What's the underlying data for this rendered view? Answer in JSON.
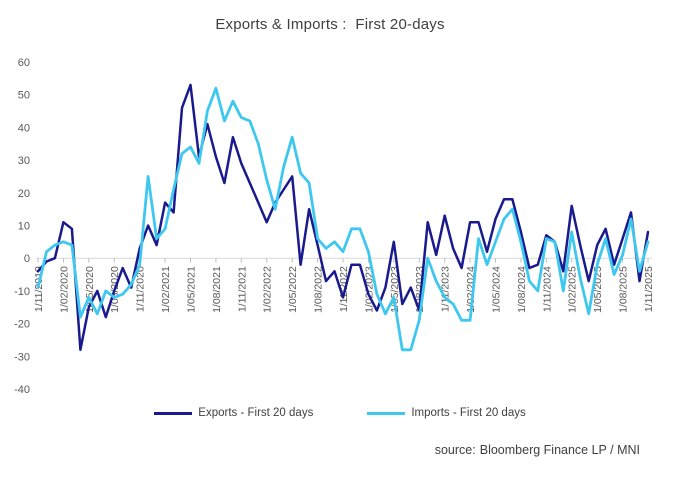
{
  "title": "Exports & Imports :  First 20-days",
  "source": {
    "label": "source:",
    "value": "Bloomberg Finance LP / MNI"
  },
  "colors": {
    "exports": "#1a1a8f",
    "imports": "#3fc8ef",
    "axis_line": "#d9d9d9",
    "tick": "#bfbfbf",
    "label_text": "#595959",
    "title_text": "#404040"
  },
  "legend": [
    {
      "label": "Exports - First 20 days",
      "series": "exports"
    },
    {
      "label": "Imports - First 20 days",
      "series": "imports"
    }
  ],
  "chart_data": {
    "type": "line",
    "title": "Exports & Imports :  First 20-days",
    "xlabel": "",
    "ylabel": "",
    "ylim": [
      -40,
      60
    ],
    "y_ticks": [
      60,
      50,
      40,
      30,
      20,
      10,
      0,
      -10,
      -20,
      -30,
      -40
    ],
    "grid": "zero-axis-line-only",
    "legend_position": "bottom",
    "n_points": 73,
    "months_between_ticks": 3,
    "x_start": "1/11/2019",
    "x_end": "1/11/2025",
    "x_tick_labels": [
      "1/11/2019",
      "1/02/2020",
      "1/05/2020",
      "1/08/2020",
      "1/11/2020",
      "1/02/2021",
      "1/05/2021",
      "1/08/2021",
      "1/11/2021",
      "1/02/2022",
      "1/05/2022",
      "1/08/2022",
      "1/11/2022",
      "1/02/2023",
      "1/05/2023",
      "1/08/2023",
      "1/11/2023",
      "1/02/2024",
      "1/05/2024",
      "1/08/2024",
      "1/11/2024",
      "1/02/2025",
      "1/05/2025",
      "1/08/2025",
      "1/11/2025"
    ],
    "series": [
      {
        "name": "Exports - First 20 days",
        "color": "#1a1a8f",
        "values": [
          -4,
          -1,
          0,
          11,
          9,
          -28,
          -15,
          -10,
          -18,
          -10,
          -3,
          -9,
          3,
          10,
          4,
          17,
          14,
          46,
          53,
          31,
          41,
          31,
          23,
          37,
          29,
          23,
          17,
          11,
          17,
          21,
          25,
          -2,
          15,
          4,
          -7,
          -4,
          -12,
          -2,
          -2,
          -11,
          -16,
          -9,
          5,
          -14,
          -9,
          -16,
          11,
          1,
          13,
          3,
          -3,
          11,
          11,
          2,
          12,
          18,
          18,
          8,
          -3,
          -2,
          7,
          5,
          -4,
          16,
          4,
          -7,
          4,
          9,
          -2,
          6,
          14,
          -7,
          8
        ]
      },
      {
        "name": "Imports - First 20 days",
        "color": "#3fc8ef",
        "values": [
          -9,
          2,
          4,
          5,
          4,
          -18,
          -12,
          -17,
          -10,
          -12,
          -11,
          -8,
          -2,
          25,
          6,
          9,
          21,
          32,
          34,
          29,
          45,
          52,
          42,
          48,
          43,
          42,
          35,
          24,
          15,
          28,
          37,
          26,
          23,
          6,
          3,
          5,
          2,
          9,
          9,
          2,
          -11,
          -17,
          -12,
          -28,
          -28,
          -19,
          0,
          -7,
          -12,
          -14,
          -19,
          -19,
          6,
          -2,
          5,
          12,
          15,
          5,
          -7,
          -10,
          6,
          5,
          -10,
          8,
          -6,
          -17,
          -2,
          6,
          -5,
          1,
          12,
          -4,
          5
        ]
      }
    ]
  }
}
